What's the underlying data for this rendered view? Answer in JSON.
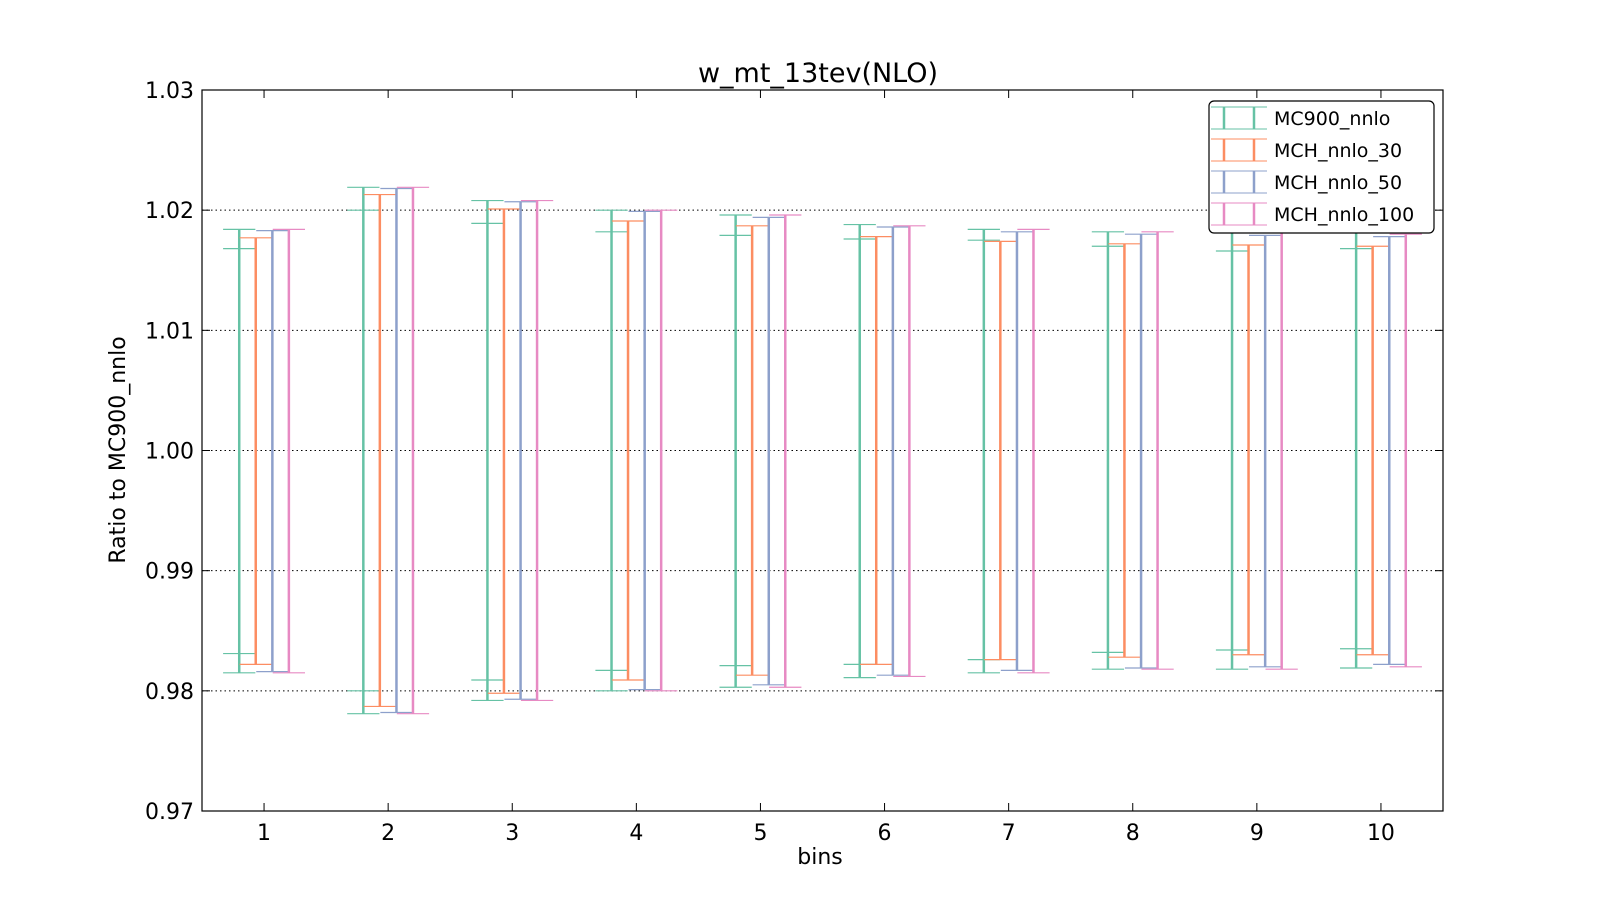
{
  "chart_data": {
    "type": "errorbar",
    "title": "w_mt_13tev(NLO)",
    "xlabel": "bins",
    "ylabel": "Ratio to MC900_nnlo",
    "xlim": [
      0.5,
      10.5
    ],
    "ylim": [
      0.97,
      1.03
    ],
    "xticks": [
      1,
      2,
      3,
      4,
      5,
      6,
      7,
      8,
      9,
      10
    ],
    "yticks": [
      "0.97",
      "0.98",
      "0.99",
      "1.00",
      "1.01",
      "1.02",
      "1.03"
    ],
    "grid": "horizontal dotted",
    "legend_position": "top-right",
    "series": [
      {
        "name": "MC900_nnlo",
        "color": "#66c2a5",
        "upper": [
          1.0184,
          1.0219,
          1.0208,
          1.02,
          1.0196,
          1.0188,
          1.0184,
          1.0182,
          1.0184,
          1.0182
        ],
        "lower": [
          0.9815,
          0.9781,
          0.9792,
          0.98,
          0.9803,
          0.9811,
          0.9815,
          0.9818,
          0.9818,
          0.9819
        ],
        "inner_upper": [
          1.0168,
          1.02,
          1.0189,
          1.0182,
          1.0179,
          1.0176,
          1.0175,
          1.017,
          1.0166,
          1.0168
        ],
        "inner_lower": [
          0.9831,
          0.98,
          0.9809,
          0.9817,
          0.9821,
          0.9822,
          0.9826,
          0.9832,
          0.9834,
          0.9835
        ]
      },
      {
        "name": "MCH_nnlo_30",
        "color": "#fc8d62",
        "upper": [
          1.0177,
          1.0213,
          1.0201,
          1.0191,
          1.0187,
          1.0178,
          1.0174,
          1.0172,
          1.0171,
          1.017
        ],
        "lower": [
          0.9822,
          0.9787,
          0.9798,
          0.9809,
          0.9813,
          0.9822,
          0.9826,
          0.9828,
          0.983,
          0.983
        ]
      },
      {
        "name": "MCH_nnlo_50",
        "color": "#8da0cb",
        "upper": [
          1.0183,
          1.0218,
          1.0207,
          1.0199,
          1.0194,
          1.0186,
          1.0182,
          1.018,
          1.0179,
          1.0178
        ],
        "lower": [
          0.9816,
          0.9782,
          0.9793,
          0.9801,
          0.9805,
          0.9813,
          0.9817,
          0.9819,
          0.982,
          0.9822
        ]
      },
      {
        "name": "MCH_nnlo_100",
        "color": "#e78ac3",
        "upper": [
          1.0184,
          1.0219,
          1.0208,
          1.02,
          1.0196,
          1.0187,
          1.0184,
          1.0182,
          1.0182,
          1.018
        ],
        "lower": [
          0.9815,
          0.9781,
          0.9792,
          0.98,
          0.9803,
          0.9812,
          0.9815,
          0.9818,
          0.9818,
          0.982
        ]
      }
    ]
  }
}
